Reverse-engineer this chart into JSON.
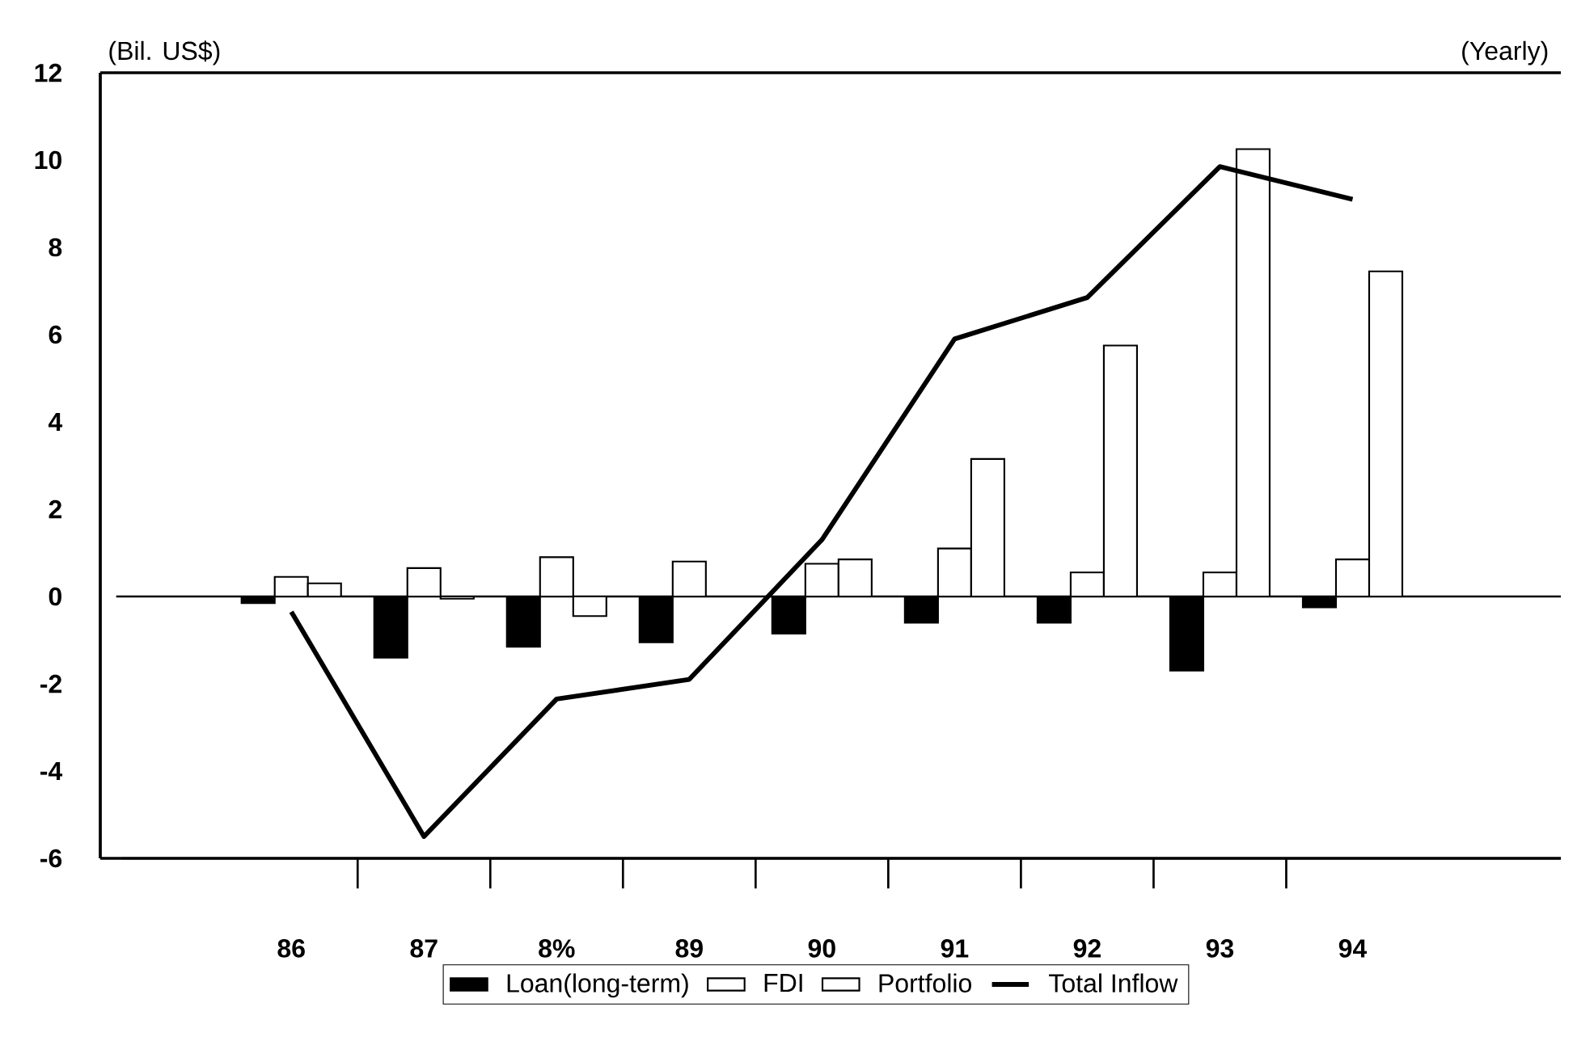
{
  "chart_data": {
    "type": "bar",
    "ylabel": "(Bil. US$)",
    "annotations": [
      "(Yearly)"
    ],
    "categories": [
      "86",
      "87",
      "8%",
      "89",
      "90",
      "91",
      "92",
      "93",
      "94"
    ],
    "series": [
      {
        "name": "Loan(long-term)",
        "color": "#000000",
        "values": [
          -0.15,
          -1.4,
          -1.15,
          -1.05,
          -0.85,
          -0.6,
          -0.6,
          -1.7,
          -0.25
        ]
      },
      {
        "name": "FDI",
        "color": "#000000",
        "values": [
          0.45,
          0.65,
          0.9,
          0.8,
          0.75,
          1.1,
          0.55,
          0.55,
          0.85
        ]
      },
      {
        "name": "Portfolio",
        "color": "#000000",
        "values": [
          0.3,
          -0.05,
          -0.45,
          0,
          0.85,
          3.15,
          5.75,
          10.25,
          7.45
        ]
      },
      {
        "name": "Total Inflow",
        "type": "line",
        "color": "#000000",
        "values": [
          -0.35,
          -5.5,
          -2.35,
          -1.9,
          1.3,
          5.9,
          6.85,
          9.85,
          9.1
        ]
      }
    ],
    "ylim": [
      -6,
      12
    ],
    "yticks": [
      -6,
      -4,
      -2,
      0,
      2,
      4,
      6,
      8,
      10,
      12
    ],
    "legend": "bottom"
  }
}
